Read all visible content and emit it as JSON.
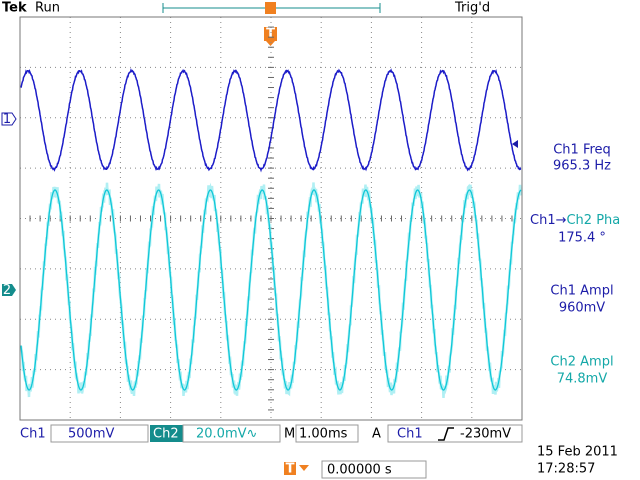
{
  "header": {
    "brand": "Tek",
    "state": "Run",
    "trigger_status": "Trig'd",
    "trigger_marker": "T"
  },
  "channel_markers": [
    "1",
    "2"
  ],
  "measurements": [
    {
      "label": [
        "Ch1 Freq"
      ],
      "value": "965.3 Hz"
    },
    {
      "label": [
        "Ch1→",
        "Ch2 Pha"
      ],
      "value": "175.4 °"
    },
    {
      "label": [
        "Ch1 Ampl"
      ],
      "value": "960mV"
    },
    {
      "label": [
        "Ch2 Ampl"
      ],
      "value": "74.8mV"
    }
  ],
  "status_bar": {
    "ch1_label": "Ch1",
    "ch1_scale": "500mV",
    "ch2_label": "Ch2",
    "ch2_scale": "20.0mV∿",
    "timebase_prefix": "M",
    "timebase": "1.00ms",
    "trigger_mode": "A",
    "trigger_source": "Ch1",
    "trigger_level": "-230mV"
  },
  "horizontal": {
    "marker": "T",
    "position": "0.00000 s"
  },
  "date": "15 Feb 2011",
  "time": "17:28:57"
}
